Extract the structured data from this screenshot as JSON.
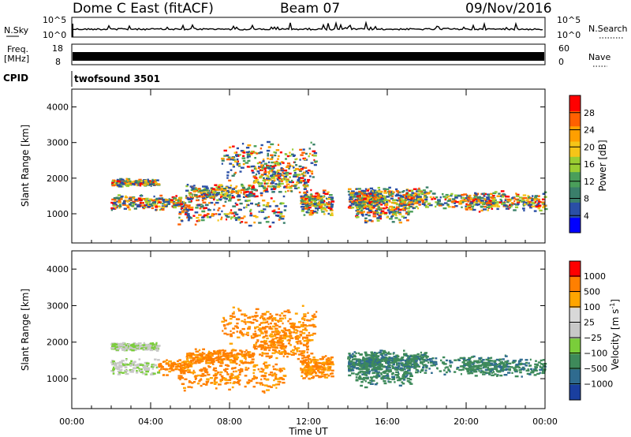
{
  "header": {
    "station": "Dome C East (fitACF)",
    "beam": "Beam 07",
    "date": "09/Nov/2016"
  },
  "strips": {
    "nsky_label": "N.Sky",
    "nsky_ticks": [
      "10^5",
      "10^0"
    ],
    "nsearch_label": "N.Search",
    "nsearch_ticks": [
      "10^5",
      "10^0"
    ],
    "freq_label_line1": "Freq.",
    "freq_label_line2": "[MHz]",
    "freq_ticks": [
      "18",
      "8"
    ],
    "nave_label": "Nave",
    "nave_ticks": [
      "60",
      "0"
    ],
    "cpid_label": "CPID",
    "cpid_value": "twofsound 3501"
  },
  "colors": {
    "power_scale": [
      "#0000ff",
      "#2a4fa6",
      "#3a7f6a",
      "#4a9e5a",
      "#9acd32",
      "#f5c518",
      "#ff9f00",
      "#ff6000",
      "#ff0000"
    ],
    "velocity_scale": [
      "#1a3f9f",
      "#2f6b8f",
      "#3e8a5a",
      "#7acd3a",
      "#c8c8c8",
      "#d8d8d8",
      "#ffa500",
      "#ff7f00",
      "#ff0000"
    ]
  },
  "chart_data": [
    {
      "type": "heatmap",
      "name": "power",
      "ylabel": "Slant Range [km]",
      "yticks": [
        "1000",
        "2000",
        "3000",
        "4000"
      ],
      "ylim": [
        180,
        4500
      ],
      "colorbar_label": "Power [dB]",
      "colorbar_ticks": [
        "4",
        "8",
        "12",
        "16",
        "20",
        "24",
        "28"
      ],
      "colorbar_range": [
        0,
        32
      ]
    },
    {
      "type": "heatmap",
      "name": "velocity",
      "ylabel": "Slant Range [km]",
      "yticks": [
        "1000",
        "2000",
        "3000",
        "4000"
      ],
      "ylim": [
        180,
        4500
      ],
      "colorbar_label": "Velocity [m s",
      "colorbar_label_sup": "-1",
      "colorbar_label_end": "]",
      "colorbar_ticks": [
        "1000",
        "500",
        "100",
        "25",
        "−25",
        "−100",
        "−500",
        "−1000"
      ]
    }
  ],
  "xaxis": {
    "xlabel": "Time UT",
    "xticks": [
      "00:00",
      "04:00",
      "08:00",
      "12:00",
      "16:00",
      "20:00",
      "00:00"
    ]
  }
}
